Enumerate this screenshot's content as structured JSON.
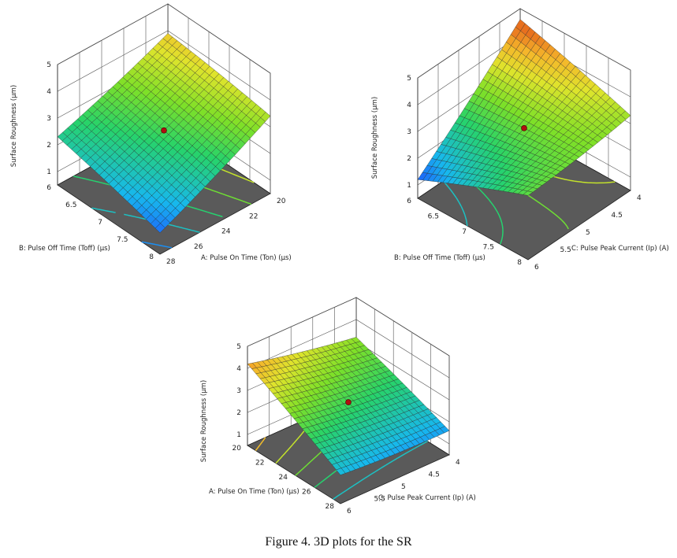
{
  "caption": "Figure 4. 3D plots for the SR",
  "chart_data": [
    {
      "type": "surface",
      "zlabel": "Surface Roughness (µm)",
      "ztick_labels": [
        "1",
        "2",
        "3",
        "4",
        "5"
      ],
      "zlim": [
        0.5,
        5
      ],
      "x_axis": {
        "label": "A: Pulse On Time (Ton) (µs)",
        "tick_labels": [
          "20",
          "22",
          "24",
          "26",
          "28"
        ],
        "range": [
          20,
          28
        ]
      },
      "y_axis": {
        "label": "B: Pulse Off Time (Toff) (µs)",
        "tick_labels": [
          "6",
          "6.5",
          "7",
          "7.5",
          "8"
        ],
        "range": [
          6,
          8
        ]
      },
      "corners": {
        "x_min_y_min": 1.3,
        "x_max_y_min": 3.4,
        "x_min_y_max": 2.3,
        "x_max_y_max": 3.9
      },
      "design_points": [
        {
          "x": 24,
          "y": 7,
          "z": 3.0
        }
      ],
      "contour_levels": [
        1.5,
        2.0,
        2.5,
        3.0,
        3.5
      ]
    },
    {
      "type": "surface",
      "zlabel": "Surface Roughness (µm)",
      "ztick_labels": [
        "1",
        "2",
        "3",
        "4",
        "5"
      ],
      "zlim": [
        0.5,
        5
      ],
      "x_axis": {
        "label": "C: Pulse Peak Current (Ip) (A)",
        "tick_labels": [
          "4",
          "4.5",
          "5",
          "5.5",
          "6"
        ],
        "range": [
          4,
          6
        ]
      },
      "y_axis": {
        "label": "B: Pulse Off Time (Toff) (µs)",
        "tick_labels": [
          "6",
          "6.5",
          "7",
          "7.5",
          "8"
        ],
        "range": [
          6,
          8
        ]
      },
      "corners": {
        "x_min_y_min": 2.9,
        "x_max_y_min": 3.3,
        "x_min_y_max": 1.2,
        "x_max_y_max": 4.6
      },
      "design_points": [
        {
          "x": 5,
          "y": 7,
          "z": 2.9
        }
      ],
      "contour_levels": [
        2.0,
        2.5,
        3.0,
        3.5,
        4.0
      ]
    },
    {
      "type": "surface",
      "zlabel": "Surface Roughness (µm)",
      "ztick_labels": [
        "1",
        "2",
        "3",
        "4",
        "5"
      ],
      "zlim": [
        0.5,
        5
      ],
      "x_axis": {
        "label": "C: Pulse Peak Current (Ip) (A)",
        "tick_labels": [
          "4",
          "4.5",
          "5",
          "5.5",
          "6"
        ],
        "range": [
          4,
          6
        ]
      },
      "y_axis": {
        "label": "A: Pulse On Time (Ton) (µs)",
        "tick_labels": [
          "20",
          "22",
          "24",
          "26",
          "28"
        ],
        "range": [
          20,
          28
        ]
      },
      "corners": {
        "x_min_y_min": 1.8,
        "x_max_y_min": 1.6,
        "x_min_y_max": 4.2,
        "x_max_y_max": 3.2
      },
      "design_points": [
        {
          "x": 5,
          "y": 24,
          "z": 2.9
        }
      ],
      "contour_levels": [
        1.5,
        2.0,
        2.5,
        3.0,
        3.5,
        4.0
      ]
    }
  ]
}
